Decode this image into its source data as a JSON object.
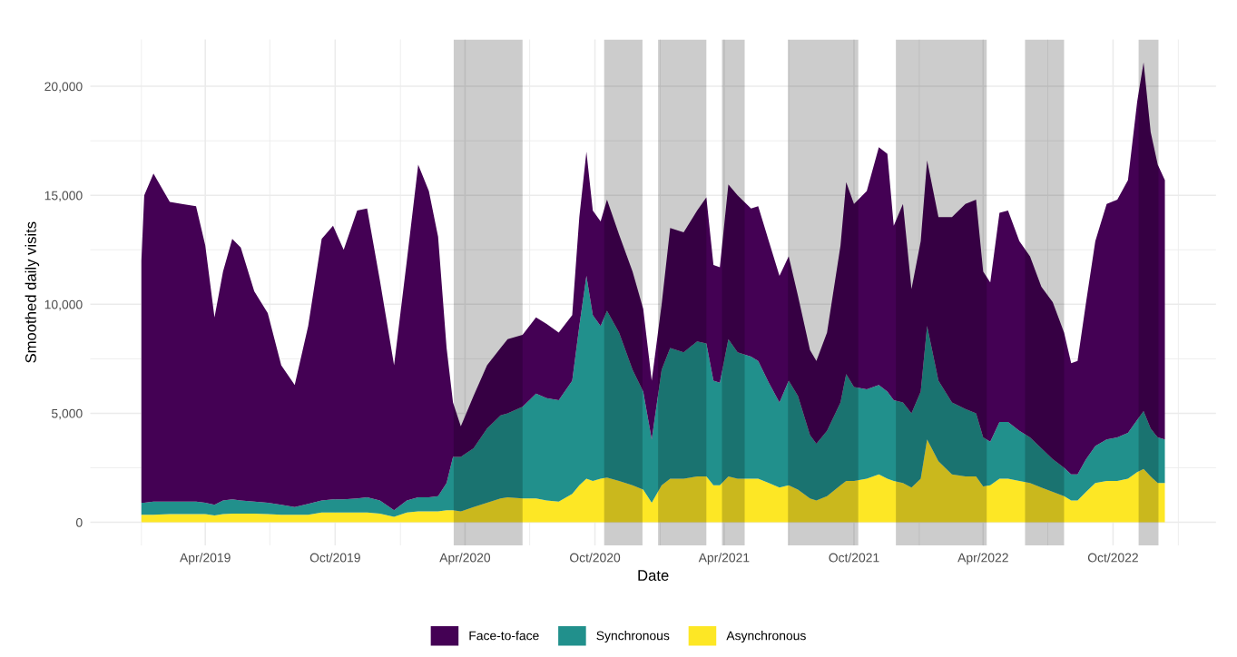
{
  "chart_data": {
    "type": "area",
    "stacked": true,
    "xlabel": "Date",
    "ylabel": "Smoothed daily visits",
    "legend": "bottom",
    "grid": true,
    "x": [
      "2019-01-01",
      "2019-01-05",
      "2019-01-18",
      "2019-02-10",
      "2019-02-27",
      "2019-03-19",
      "2019-04-01",
      "2019-04-14",
      "2019-04-26",
      "2019-05-09",
      "2019-05-21",
      "2019-06-09",
      "2019-06-28",
      "2019-07-17",
      "2019-08-05",
      "2019-08-24",
      "2019-09-12",
      "2019-09-28",
      "2019-10-13",
      "2019-11-01",
      "2019-11-15",
      "2019-12-03",
      "2019-12-23",
      "2020-01-10",
      "2020-01-26",
      "2020-02-10",
      "2020-02-23",
      "2020-03-06",
      "2020-03-15",
      "2020-03-26",
      "2020-04-13",
      "2020-05-02",
      "2020-05-21",
      "2020-05-31",
      "2020-06-21",
      "2020-07-10",
      "2020-07-25",
      "2020-08-11",
      "2020-08-30",
      "2020-09-09",
      "2020-09-19",
      "2020-09-28",
      "2020-10-09",
      "2020-10-18",
      "2020-11-04",
      "2020-11-23",
      "2020-12-08",
      "2020-12-20",
      "2021-01-03",
      "2021-01-15",
      "2021-02-03",
      "2021-02-22",
      "2021-03-07",
      "2021-03-17",
      "2021-03-26",
      "2021-04-07",
      "2021-04-20",
      "2021-05-09",
      "2021-05-19",
      "2021-06-03",
      "2021-06-18",
      "2021-07-01",
      "2021-07-14",
      "2021-07-31",
      "2021-08-09",
      "2021-08-24",
      "2021-09-12",
      "2021-09-20",
      "2021-10-01",
      "2021-10-19",
      "2021-11-05",
      "2021-11-17",
      "2021-11-26",
      "2021-12-09",
      "2021-12-21",
      "2022-01-03",
      "2022-01-12",
      "2022-01-28",
      "2022-02-16",
      "2022-03-07",
      "2022-03-22",
      "2022-04-01",
      "2022-04-11",
      "2022-04-24",
      "2022-05-06",
      "2022-05-22",
      "2022-06-06",
      "2022-06-22",
      "2022-07-08",
      "2022-07-24",
      "2022-08-03",
      "2022-08-12",
      "2022-08-24",
      "2022-09-06",
      "2022-09-22",
      "2022-10-07",
      "2022-10-22",
      "2022-11-04",
      "2022-11-13",
      "2022-11-23",
      "2022-12-03",
      "2022-12-13"
    ],
    "series": [
      {
        "name": "Asynchronous",
        "color": "#fde725",
        "values": [
          350,
          350,
          350,
          380,
          380,
          380,
          380,
          320,
          380,
          400,
          400,
          400,
          380,
          350,
          350,
          350,
          450,
          450,
          450,
          450,
          450,
          400,
          250,
          450,
          500,
          500,
          500,
          550,
          550,
          500,
          700,
          900,
          1100,
          1150,
          1100,
          1100,
          1000,
          950,
          1300,
          1700,
          2000,
          1900,
          2000,
          2050,
          1900,
          1700,
          1500,
          900,
          1700,
          2000,
          2000,
          2100,
          2100,
          1700,
          1700,
          2100,
          2000,
          2000,
          2000,
          1800,
          1600,
          1700,
          1500,
          1100,
          1000,
          1200,
          1700,
          1900,
          1900,
          2000,
          2200,
          2000,
          1900,
          1800,
          1600,
          2000,
          3800,
          2800,
          2200,
          2100,
          2100,
          1650,
          1700,
          2000,
          2000,
          1900,
          1800,
          1600,
          1400,
          1200,
          1000,
          1000,
          1400,
          1800,
          1900,
          1900,
          2000,
          2300,
          2450,
          2100,
          1800,
          1800
        ]
      },
      {
        "name": "Synchronous",
        "color": "#21908c",
        "values": [
          550,
          550,
          600,
          570,
          570,
          570,
          520,
          480,
          620,
          650,
          600,
          550,
          520,
          450,
          350,
          500,
          550,
          600,
          600,
          650,
          700,
          600,
          300,
          550,
          650,
          650,
          700,
          1250,
          2450,
          2500,
          2700,
          3400,
          3800,
          3850,
          4200,
          4800,
          4700,
          4650,
          5200,
          7300,
          9300,
          7600,
          7000,
          7650,
          6800,
          5300,
          4500,
          2900,
          5300,
          6000,
          5800,
          6200,
          6100,
          4800,
          4700,
          6300,
          5800,
          5600,
          5400,
          4600,
          3900,
          4800,
          4300,
          2900,
          2600,
          3000,
          3800,
          4900,
          4300,
          4100,
          4100,
          4000,
          3700,
          3700,
          3400,
          4000,
          5200,
          3700,
          3300,
          3100,
          2900,
          2250,
          2000,
          2600,
          2600,
          2300,
          2100,
          1800,
          1500,
          1300,
          1200,
          1200,
          1500,
          1700,
          1900,
          2000,
          2100,
          2400,
          2650,
          2200,
          2100,
          2000
        ]
      },
      {
        "name": "Face-to-face",
        "color": "#440154",
        "values": [
          11100,
          14100,
          15050,
          13750,
          13650,
          13550,
          11800,
          8600,
          10500,
          11950,
          11600,
          9650,
          8700,
          6400,
          5600,
          8150,
          12000,
          12550,
          11450,
          13200,
          13250,
          10100,
          6650,
          11000,
          15250,
          14050,
          11900,
          6200,
          2500,
          1400,
          2400,
          2900,
          3100,
          3400,
          3300,
          3500,
          3400,
          3100,
          3000,
          5000,
          5700,
          4800,
          4800,
          5100,
          4500,
          4500,
          3800,
          2700,
          3000,
          5500,
          5500,
          6000,
          6700,
          5300,
          5300,
          7100,
          7200,
          6800,
          7100,
          6500,
          5800,
          5700,
          4600,
          3900,
          3800,
          4500,
          7200,
          8800,
          8400,
          9100,
          10900,
          10900,
          8000,
          9100,
          5700,
          6900,
          7600,
          7500,
          8500,
          9400,
          9800,
          7600,
          7300,
          9600,
          9700,
          8700,
          8300,
          7400,
          7200,
          6200,
          5100,
          5200,
          7200,
          9400,
          10800,
          10900,
          11600,
          14600,
          16000,
          13600,
          12500,
          11900
        ]
      }
    ],
    "bands": [
      {
        "axis": "x",
        "from": "2020-03-16",
        "to": "2020-06-21",
        "color": "#000000"
      },
      {
        "axis": "x",
        "from": "2020-10-14",
        "to": "2020-12-07",
        "color": "#000000"
      },
      {
        "axis": "x",
        "from": "2020-12-29",
        "to": "2021-03-07",
        "color": "#000000"
      },
      {
        "axis": "x",
        "from": "2021-03-29",
        "to": "2021-04-30",
        "color": "#000000"
      },
      {
        "axis": "x",
        "from": "2021-06-30",
        "to": "2021-10-07",
        "color": "#000000"
      },
      {
        "axis": "x",
        "from": "2021-11-29",
        "to": "2022-04-06",
        "color": "#000000"
      },
      {
        "axis": "x",
        "from": "2022-05-30",
        "to": "2022-07-24",
        "color": "#000000"
      },
      {
        "axis": "x",
        "from": "2022-11-06",
        "to": "2022-12-04",
        "color": "#000000"
      }
    ],
    "xlim": [
      "2018-10-21",
      "2023-02-23"
    ],
    "xticks": [
      {
        "value": "2019-01-01",
        "label": null
      },
      {
        "value": "2019-04-01",
        "label": "Apr/2019"
      },
      {
        "value": "2019-07-01",
        "label": null
      },
      {
        "value": "2019-10-01",
        "label": "Oct/2019"
      },
      {
        "value": "2020-01-01",
        "label": null
      },
      {
        "value": "2020-04-01",
        "label": "Apr/2020"
      },
      {
        "value": "2020-07-01",
        "label": null
      },
      {
        "value": "2020-10-01",
        "label": "Oct/2020"
      },
      {
        "value": "2021-01-01",
        "label": null
      },
      {
        "value": "2021-04-01",
        "label": "Apr/2021"
      },
      {
        "value": "2021-07-01",
        "label": null
      },
      {
        "value": "2021-10-01",
        "label": "Oct/2021"
      },
      {
        "value": "2022-01-01",
        "label": null
      },
      {
        "value": "2022-04-01",
        "label": "Apr/2022"
      },
      {
        "value": "2022-07-01",
        "label": null
      },
      {
        "value": "2022-10-01",
        "label": "Oct/2022"
      },
      {
        "value": "2023-01-01",
        "label": null
      }
    ],
    "ylim": [
      -1055,
      22150
    ],
    "yticks": [
      {
        "value": 0,
        "label": "0"
      },
      {
        "value": 2500,
        "label": null
      },
      {
        "value": 5000,
        "label": "5,000"
      },
      {
        "value": 7500,
        "label": null
      },
      {
        "value": 10000,
        "label": "10,000"
      },
      {
        "value": 12500,
        "label": null
      },
      {
        "value": 15000,
        "label": "15,000"
      },
      {
        "value": 17500,
        "label": null
      },
      {
        "value": 20000,
        "label": "20,000"
      }
    ]
  }
}
